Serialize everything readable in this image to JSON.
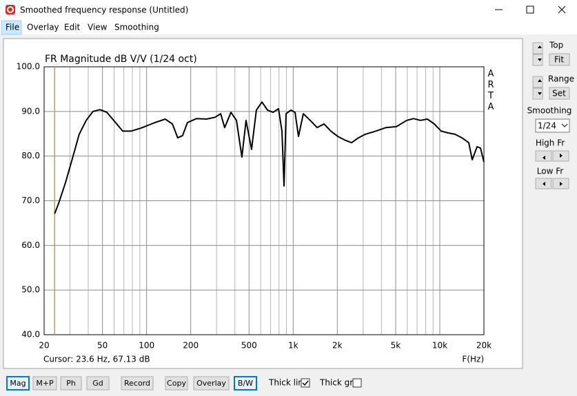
{
  "window": {
    "title": "Smoothed frequency response (Untitled)"
  },
  "menu": [
    "File",
    "Overlay",
    "Edit",
    "View",
    "Smoothing"
  ],
  "chart_data": {
    "type": "line",
    "title": "FR Magnitude dB V/V (1/24 oct)",
    "x_label": "F(Hz)",
    "watermark": "ARTA",
    "cursor": "Cursor: 23.6 Hz, 67.13 dB",
    "cursor_line": {
      "x": 23.6,
      "color": "#b8a040"
    },
    "xlog": true,
    "grid": true,
    "xlim": [
      20,
      20000
    ],
    "ylim": [
      40,
      100
    ],
    "xticks": [
      20,
      50,
      100,
      200,
      500,
      {
        "value": 1000,
        "label": "1k"
      },
      {
        "value": 2000,
        "label": "2k"
      },
      {
        "value": 5000,
        "label": "5k"
      },
      {
        "value": 10000,
        "label": "10k"
      },
      {
        "value": 20000,
        "label": "20k"
      }
    ],
    "xgrid": [
      30,
      40,
      60,
      70,
      80,
      90,
      300,
      400,
      600,
      700,
      800,
      900,
      3000,
      4000,
      6000,
      7000,
      8000,
      9000
    ],
    "yticks": [
      {
        "value": 40,
        "label": "40.0"
      },
      {
        "value": 50,
        "label": "50.0"
      },
      {
        "value": 60,
        "label": "60.0"
      },
      {
        "value": 70,
        "label": "70.0"
      },
      {
        "value": 80,
        "label": "80.0"
      },
      {
        "value": 90,
        "label": "90.0"
      },
      {
        "value": 100,
        "label": "100.0"
      }
    ],
    "x": [
      23.6,
      25.1,
      28,
      31.2,
      34.7,
      38.7,
      43.1,
      48.1,
      53.6,
      59.7,
      68.7,
      78.3,
      92.1,
      114,
      134,
      150,
      163,
      176,
      190,
      219,
      257,
      293,
      320,
      341,
      376,
      410,
      447,
      477,
      520,
      561,
      612,
      668,
      728,
      794,
      838,
      866,
      894,
      965,
      1030,
      1087,
      1172,
      1306,
      1456,
      1623,
      1808,
      2014,
      2245,
      2502,
      2788,
      3107,
      3655,
      4297,
      5057,
      5947,
      6628,
      7385,
      8232,
      9173,
      10223,
      11392,
      12697,
      14149,
      15768,
      16646,
      17955,
      18945,
      20000
    ],
    "series": [
      {
        "color": "#000000",
        "values": [
          67.1,
          69.4,
          74.1,
          79.5,
          84.9,
          88.0,
          90.0,
          90.4,
          89.8,
          88.0,
          85.6,
          85.6,
          86.3,
          87.5,
          88.3,
          87.2,
          84.1,
          84.6,
          87.5,
          88.4,
          88.3,
          88.7,
          89.5,
          86.4,
          89.8,
          88.0,
          79.8,
          88.0,
          81.5,
          90.3,
          92.1,
          90.3,
          89.8,
          90.6,
          85.6,
          73.3,
          89.5,
          90.3,
          89.8,
          84.4,
          89.5,
          88.0,
          86.4,
          87.2,
          85.6,
          84.4,
          83.6,
          83.0,
          84.1,
          84.9,
          85.6,
          86.4,
          86.6,
          88.0,
          88.4,
          88.0,
          88.3,
          87.2,
          85.6,
          85.2,
          84.9,
          84.1,
          83.0,
          79.2,
          82.1,
          81.8,
          78.7
        ]
      }
    ]
  },
  "side_panel": {
    "top": "Top",
    "fit": "Fit",
    "range": "Range",
    "set": "Set",
    "smoothing": "Smoothing",
    "smoothing_value": "1/24",
    "high_fr": "High Fr",
    "low_fr": "Low Fr"
  },
  "toolbar": {
    "buttons": [
      "Mag",
      "M+P",
      "Ph",
      "Gd",
      "Record",
      "Copy",
      "Overlay",
      "B/W"
    ],
    "thick_line": "Thick line",
    "thick_line_checked": true,
    "thick_grid": "Thick grid",
    "thick_grid_checked": false
  }
}
